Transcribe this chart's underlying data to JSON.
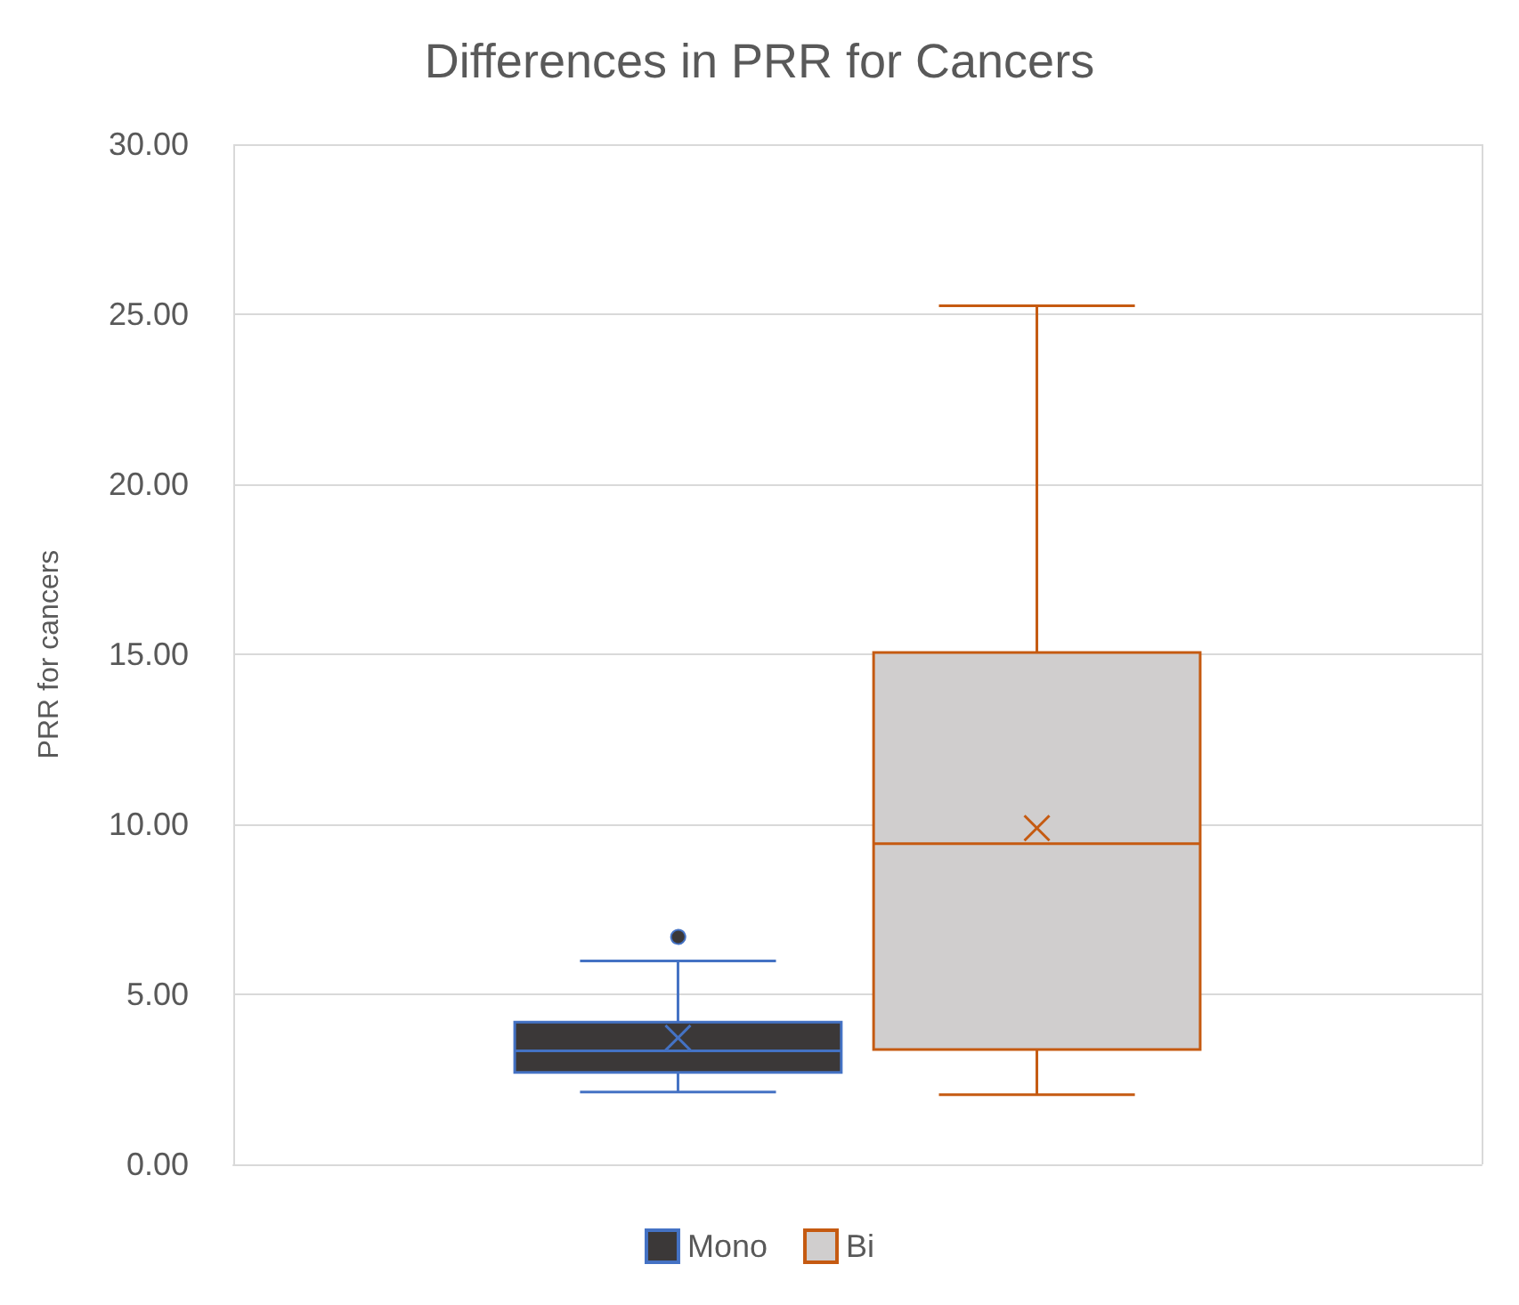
{
  "chart_data": {
    "type": "box",
    "title": "Differences in PRR for Cancers",
    "ylabel": "PRR for cancers",
    "categories": [
      null
    ],
    "series": [
      {
        "name": "Mono",
        "color": "#3b3838",
        "boxes": [
          {
            "low": 2.13,
            "q1": 2.7,
            "median": 3.34,
            "q3": 4.18,
            "high": 5.98,
            "mean": 3.72,
            "outliers": [
              6.74
            ]
          }
        ]
      },
      {
        "name": "Bi",
        "color": "#d0cece",
        "boxes": [
          {
            "low": 2.05,
            "q1": 3.38,
            "median": 9.43,
            "q3": 15.05,
            "high": 25.25,
            "mean": 9.89
          }
        ]
      }
    ],
    "ylim": [
      0,
      30
    ],
    "yticks": [
      {
        "value": 0,
        "label": "0.00"
      },
      {
        "value": 5,
        "label": "5.00"
      },
      {
        "value": 10,
        "label": "10.00"
      },
      {
        "value": 15,
        "label": "15.00"
      },
      {
        "value": 20,
        "label": "20.00"
      },
      {
        "value": 25,
        "label": "25.00"
      },
      {
        "value": 30,
        "label": "30.00"
      }
    ],
    "grid": true,
    "legend": "bottom"
  }
}
